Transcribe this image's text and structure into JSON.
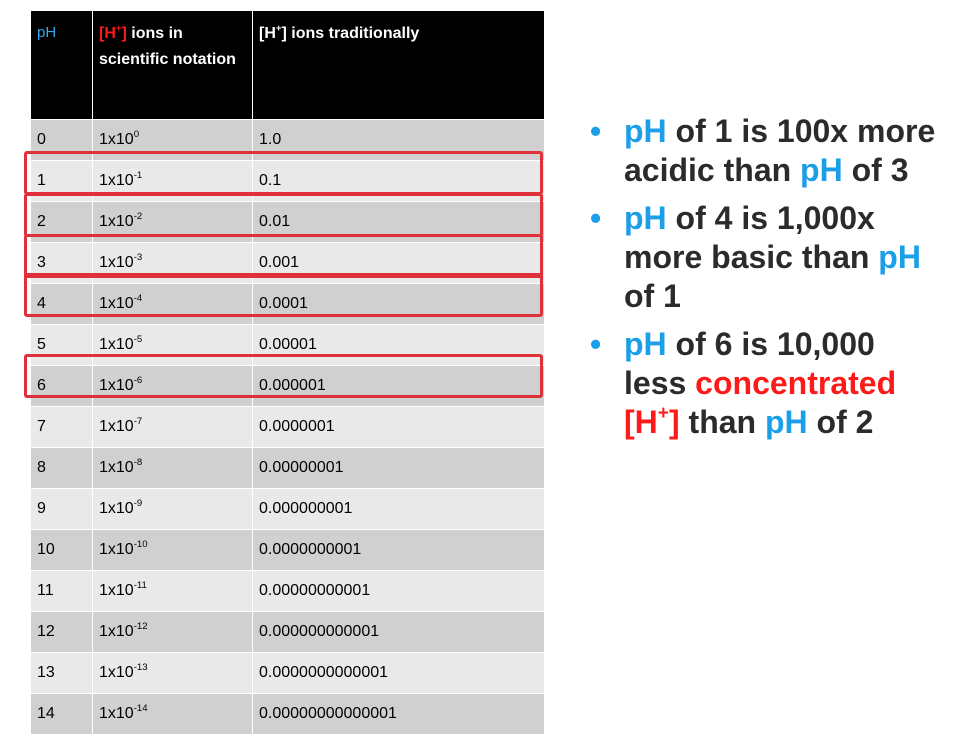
{
  "table": {
    "headers": {
      "ph": "pH",
      "sci_prefix": "[H",
      "sci_sup": "+",
      "sci_bracket": "]",
      "sci_rest": " ions in scientific notation",
      "trad_prefix": "[H",
      "trad_sup": "+",
      "trad_rest": "] ions traditionally"
    },
    "rows": [
      {
        "ph": "0",
        "base": "1x10",
        "exp": "0",
        "trad": "1.0"
      },
      {
        "ph": "1",
        "base": "1x10",
        "exp": "-1",
        "trad": "0.1"
      },
      {
        "ph": "2",
        "base": "1x10",
        "exp": "-2",
        "trad": "0.01"
      },
      {
        "ph": "3",
        "base": "1x10",
        "exp": "-3",
        "trad": "0.001"
      },
      {
        "ph": "4",
        "base": "1x10",
        "exp": "-4",
        "trad": "0.0001"
      },
      {
        "ph": "5",
        "base": "1x10",
        "exp": "-5",
        "trad": "0.00001"
      },
      {
        "ph": "6",
        "base": "1x10",
        "exp": "-6",
        "trad": "0.000001"
      },
      {
        "ph": "7",
        "base": "1x10",
        "exp": "-7",
        "trad": "0.0000001"
      },
      {
        "ph": "8",
        "base": "1x10",
        "exp": "-8",
        "trad": "0.00000001"
      },
      {
        "ph": "9",
        "base": "1x10",
        "exp": "-9",
        "trad": "0.000000001"
      },
      {
        "ph": "10",
        "base": "1x10",
        "exp": "-10",
        "trad": "0.0000000001"
      },
      {
        "ph": "11",
        "base": "1x10",
        "exp": "-11",
        "trad": "0.00000000001"
      },
      {
        "ph": "12",
        "base": "1x10",
        "exp": "-12",
        "trad": "0.000000000001"
      },
      {
        "ph": "13",
        "base": "1x10",
        "exp": "-13",
        "trad": "0.0000000000001"
      },
      {
        "ph": "14",
        "base": "1x10",
        "exp": "-14",
        "trad": "0.00000000000001"
      }
    ],
    "highlighted_ph": [
      "1",
      "2",
      "3",
      "4",
      "6"
    ]
  },
  "bullets": {
    "marker": "•",
    "b1": {
      "ph1": "pH",
      "t1": " of 1 is 100x more acidic than ",
      "ph2": "pH",
      "t2": " of 3"
    },
    "b2": {
      "ph1": "pH",
      "t1": " of 4 is 1,000x more basic than ",
      "ph2": "pH",
      "t2": " of 1"
    },
    "b3": {
      "ph1": "pH",
      "t1": " of 6 is 10,000 less ",
      "red1": "concentrated",
      "br_open": "[H",
      "sup": "+",
      "br_close": "]",
      "t2": " than ",
      "ph2": "pH",
      "t3": " of 2"
    }
  },
  "colors": {
    "accent_blue": "#1a9fe8",
    "accent_red": "#ff1a1a",
    "highlight_box": "#e0303a",
    "header_bg": "#000000"
  }
}
